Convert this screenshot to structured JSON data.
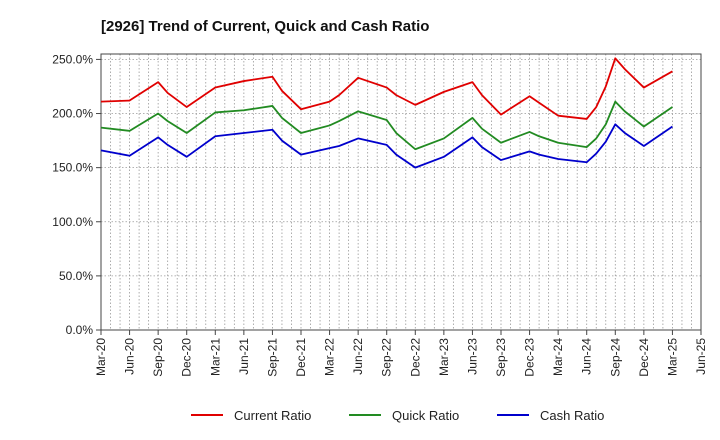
{
  "chart_data": {
    "type": "line",
    "title": "[2926]  Trend of Current, Quick and Cash Ratio",
    "xlabel": "",
    "ylabel": "",
    "ylim": [
      0,
      255
    ],
    "y_ticks": [
      0,
      50,
      100,
      150,
      200,
      250
    ],
    "y_tick_labels": [
      "0.0%",
      "50.0%",
      "100.0%",
      "150.0%",
      "200.0%",
      "250.0%"
    ],
    "x_range": [
      0,
      63
    ],
    "x_ticks": [
      0,
      3,
      6,
      9,
      12,
      15,
      18,
      21,
      24,
      27,
      30,
      33,
      36,
      39,
      42,
      45,
      48,
      51,
      54,
      57,
      60,
      63
    ],
    "x_tick_labels": [
      "Mar-20",
      "Jun-20",
      "Sep-20",
      "Dec-20",
      "Mar-21",
      "Jun-21",
      "Sep-21",
      "Dec-21",
      "Mar-22",
      "Jun-22",
      "Sep-22",
      "Dec-22",
      "Mar-23",
      "Jun-23",
      "Sep-23",
      "Dec-23",
      "Mar-24",
      "Jun-24",
      "Sep-24",
      "Dec-24",
      "Mar-25",
      "Jun-25"
    ],
    "grid": true,
    "legend_position": "bottom",
    "series": [
      {
        "name": "Current Ratio",
        "color": "#e00000",
        "points": [
          [
            0,
            211
          ],
          [
            3,
            212
          ],
          [
            6,
            229
          ],
          [
            7,
            219
          ],
          [
            9,
            206
          ],
          [
            12,
            224
          ],
          [
            15,
            230
          ],
          [
            18,
            234
          ],
          [
            19,
            221
          ],
          [
            21,
            204
          ],
          [
            24,
            211
          ],
          [
            25,
            217
          ],
          [
            27,
            233
          ],
          [
            30,
            224
          ],
          [
            31,
            217
          ],
          [
            33,
            208
          ],
          [
            36,
            220
          ],
          [
            39,
            229
          ],
          [
            40,
            217
          ],
          [
            42,
            199
          ],
          [
            45,
            216
          ],
          [
            46,
            210
          ],
          [
            48,
            198
          ],
          [
            51,
            195
          ],
          [
            52,
            206
          ],
          [
            53,
            225
          ],
          [
            54,
            251
          ],
          [
            55,
            241
          ],
          [
            57,
            224
          ],
          [
            60,
            239
          ]
        ]
      },
      {
        "name": "Quick Ratio",
        "color": "#228b22",
        "points": [
          [
            0,
            187
          ],
          [
            3,
            184
          ],
          [
            6,
            200
          ],
          [
            7,
            193
          ],
          [
            9,
            182
          ],
          [
            12,
            201
          ],
          [
            15,
            203
          ],
          [
            18,
            207
          ],
          [
            19,
            196
          ],
          [
            21,
            182
          ],
          [
            24,
            189
          ],
          [
            25,
            193
          ],
          [
            27,
            202
          ],
          [
            30,
            194
          ],
          [
            31,
            182
          ],
          [
            33,
            167
          ],
          [
            36,
            177
          ],
          [
            39,
            196
          ],
          [
            40,
            186
          ],
          [
            42,
            173
          ],
          [
            45,
            183
          ],
          [
            46,
            179
          ],
          [
            48,
            173
          ],
          [
            51,
            169
          ],
          [
            52,
            177
          ],
          [
            53,
            190
          ],
          [
            54,
            211
          ],
          [
            55,
            202
          ],
          [
            57,
            188
          ],
          [
            60,
            206
          ]
        ]
      },
      {
        "name": "Cash Ratio",
        "color": "#0000cc",
        "points": [
          [
            0,
            166
          ],
          [
            3,
            161
          ],
          [
            6,
            178
          ],
          [
            7,
            171
          ],
          [
            9,
            160
          ],
          [
            12,
            179
          ],
          [
            15,
            182
          ],
          [
            18,
            185
          ],
          [
            19,
            175
          ],
          [
            21,
            162
          ],
          [
            24,
            168
          ],
          [
            25,
            170
          ],
          [
            27,
            177
          ],
          [
            30,
            171
          ],
          [
            31,
            162
          ],
          [
            33,
            150
          ],
          [
            36,
            160
          ],
          [
            39,
            178
          ],
          [
            40,
            169
          ],
          [
            42,
            157
          ],
          [
            45,
            165
          ],
          [
            46,
            162
          ],
          [
            48,
            158
          ],
          [
            51,
            155
          ],
          [
            52,
            163
          ],
          [
            53,
            174
          ],
          [
            54,
            190
          ],
          [
            55,
            182
          ],
          [
            57,
            170
          ],
          [
            60,
            188
          ]
        ]
      }
    ]
  }
}
